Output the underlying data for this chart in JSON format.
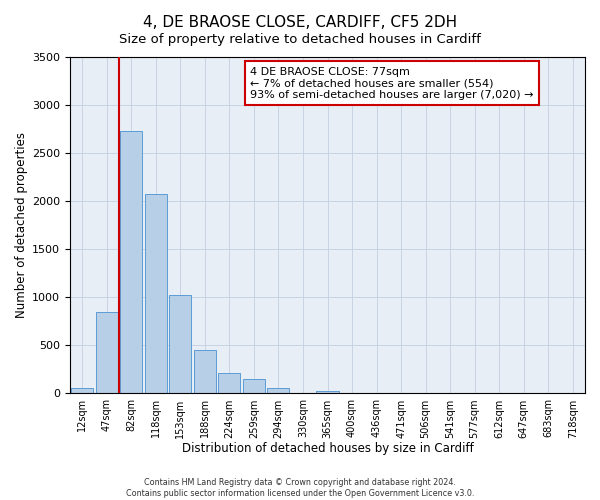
{
  "title": "4, DE BRAOSE CLOSE, CARDIFF, CF5 2DH",
  "subtitle": "Size of property relative to detached houses in Cardiff",
  "xlabel": "Distribution of detached houses by size in Cardiff",
  "ylabel": "Number of detached properties",
  "bar_labels": [
    "12sqm",
    "47sqm",
    "82sqm",
    "118sqm",
    "153sqm",
    "188sqm",
    "224sqm",
    "259sqm",
    "294sqm",
    "330sqm",
    "365sqm",
    "400sqm",
    "436sqm",
    "471sqm",
    "506sqm",
    "541sqm",
    "577sqm",
    "612sqm",
    "647sqm",
    "683sqm",
    "718sqm"
  ],
  "bar_values": [
    55,
    850,
    2730,
    2075,
    1020,
    455,
    210,
    150,
    60,
    0,
    30,
    0,
    0,
    0,
    0,
    0,
    0,
    0,
    0,
    0,
    0
  ],
  "bar_color": "#b8cfe8",
  "bar_edge_color": "#5b9bd5",
  "vline_color": "#cc0000",
  "vline_x": 1.5,
  "ylim": [
    0,
    3500
  ],
  "yticks": [
    0,
    500,
    1000,
    1500,
    2000,
    2500,
    3000,
    3500
  ],
  "annotation_title": "4 DE BRAOSE CLOSE: 77sqm",
  "annotation_line1": "← 7% of detached houses are smaller (554)",
  "annotation_line2": "93% of semi-detached houses are larger (7,020) →",
  "annotation_box_color": "#ffffff",
  "annotation_box_edge": "#cc0000",
  "footer1": "Contains HM Land Registry data © Crown copyright and database right 2024.",
  "footer2": "Contains public sector information licensed under the Open Government Licence v3.0.",
  "bg_color": "#ffffff",
  "plot_bg_color": "#e8eef5",
  "grid_color": "#c8d4e4",
  "title_fontsize": 11,
  "subtitle_fontsize": 9.5
}
